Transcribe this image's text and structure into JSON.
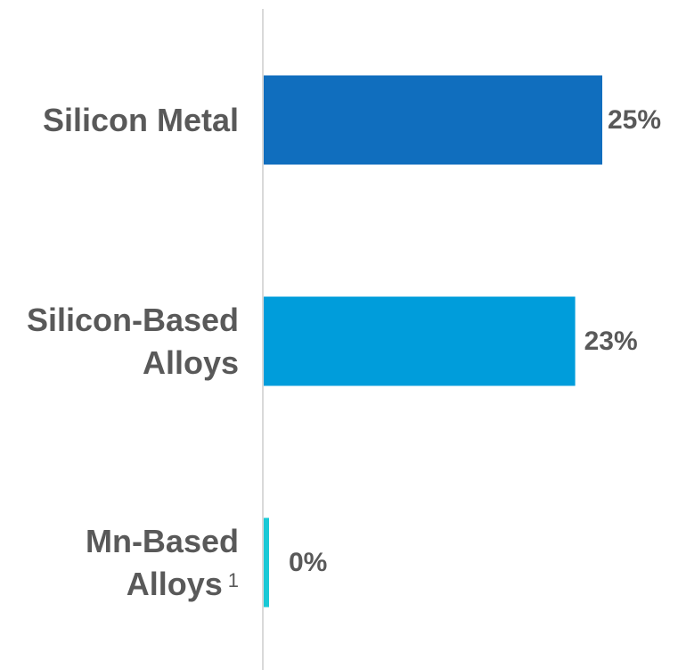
{
  "chart_data": {
    "type": "bar",
    "orientation": "horizontal",
    "categories": [
      {
        "lines": [
          "Silicon Metal"
        ],
        "superscript": ""
      },
      {
        "lines": [
          "Silicon-Based",
          "Alloys"
        ],
        "superscript": ""
      },
      {
        "lines": [
          "Mn-Based",
          "Alloys"
        ],
        "superscript": "1"
      }
    ],
    "values": [
      25,
      23,
      0.3
    ],
    "value_labels": [
      "25%",
      "23%",
      "0%"
    ],
    "colors": [
      "#106EBE",
      "#009DDB",
      "#19C9D6"
    ],
    "xlim": [
      0,
      30
    ],
    "grid": false,
    "title": "",
    "xlabel": "",
    "ylabel": ""
  }
}
